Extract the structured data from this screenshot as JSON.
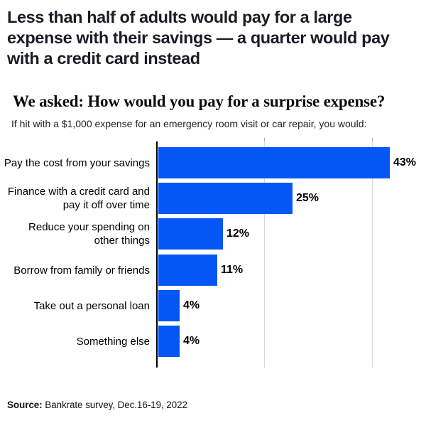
{
  "page": {
    "headline_lines": [
      "Less than half of adults would pay for a large",
      "expense with their savings — a quarter would pay",
      "with a credit card instead"
    ],
    "source_label": "Source:",
    "source_text": " Bankrate survey, Dec.16-19, 2022"
  },
  "chart_data": {
    "type": "bar",
    "orientation": "horizontal",
    "title": "We asked: How would you pay for a surprise expense?",
    "subtitle": "If hit with a $1,000 expense for an emergency room visit or car repair, you would:",
    "categories": [
      "Pay the cost from your savings",
      "Finance with a credit card and pay it off over time",
      "Reduce your spending on other things",
      "Borrow from family or friends",
      "Take out a personal loan",
      "Something else"
    ],
    "display_labels": [
      "Pay the cost from your savings",
      "Finance with a credit card and\npay it off over time",
      "Reduce your spending on\nother things",
      "Borrow from family or friends",
      "Take out a personal loan",
      "Something else"
    ],
    "values": [
      43,
      25,
      12,
      11,
      4,
      4
    ],
    "value_labels": [
      "43%",
      "25%",
      "12%",
      "11%",
      "4%",
      "4%"
    ],
    "unit": "%",
    "xlim": [
      0,
      47
    ],
    "gridlines_x": [
      20,
      40
    ],
    "grid": true,
    "legend": false,
    "colors": {
      "bar": "#0557f5",
      "axis": "#000000",
      "gridline": "#d9d9d9",
      "gridtick": "#ababab"
    }
  }
}
